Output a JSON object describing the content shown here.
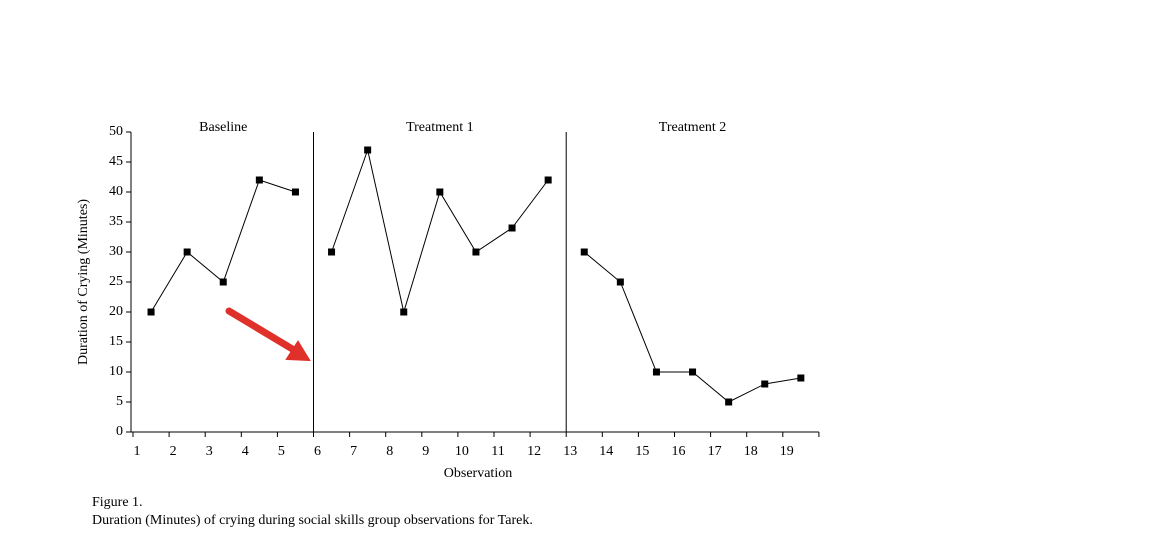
{
  "chart_data": {
    "type": "line",
    "x_label": "Observation",
    "y_label": "Duration of Crying (Minutes)",
    "categories": [
      "1",
      "2",
      "3",
      "4",
      "5",
      "6",
      "7",
      "8",
      "9",
      "10",
      "11",
      "12",
      "13",
      "14",
      "15",
      "16",
      "17",
      "18",
      "19"
    ],
    "series": [
      {
        "name": "Baseline",
        "color": "#000000",
        "values": [
          20,
          30,
          25,
          42,
          40,
          null,
          null,
          null,
          null,
          null,
          null,
          null,
          null,
          null,
          null,
          null,
          null,
          null,
          null
        ]
      },
      {
        "name": "Treatment 1",
        "color": "#000000",
        "values": [
          null,
          null,
          null,
          null,
          null,
          30,
          47,
          20,
          40,
          30,
          34,
          42,
          null,
          null,
          null,
          null,
          null,
          null,
          null
        ]
      },
      {
        "name": "Treatment 2",
        "color": "#000000",
        "values": [
          null,
          null,
          null,
          null,
          null,
          null,
          null,
          null,
          null,
          null,
          null,
          null,
          30,
          25,
          10,
          10,
          5,
          8,
          9
        ]
      }
    ],
    "ylim": [
      0,
      50
    ],
    "yticks": [
      0,
      5,
      10,
      15,
      20,
      25,
      30,
      35,
      40,
      45,
      50
    ],
    "caption": [
      "Figure 1.",
      "Duration (Minutes) of crying during social skills group observations for Tarek."
    ]
  }
}
